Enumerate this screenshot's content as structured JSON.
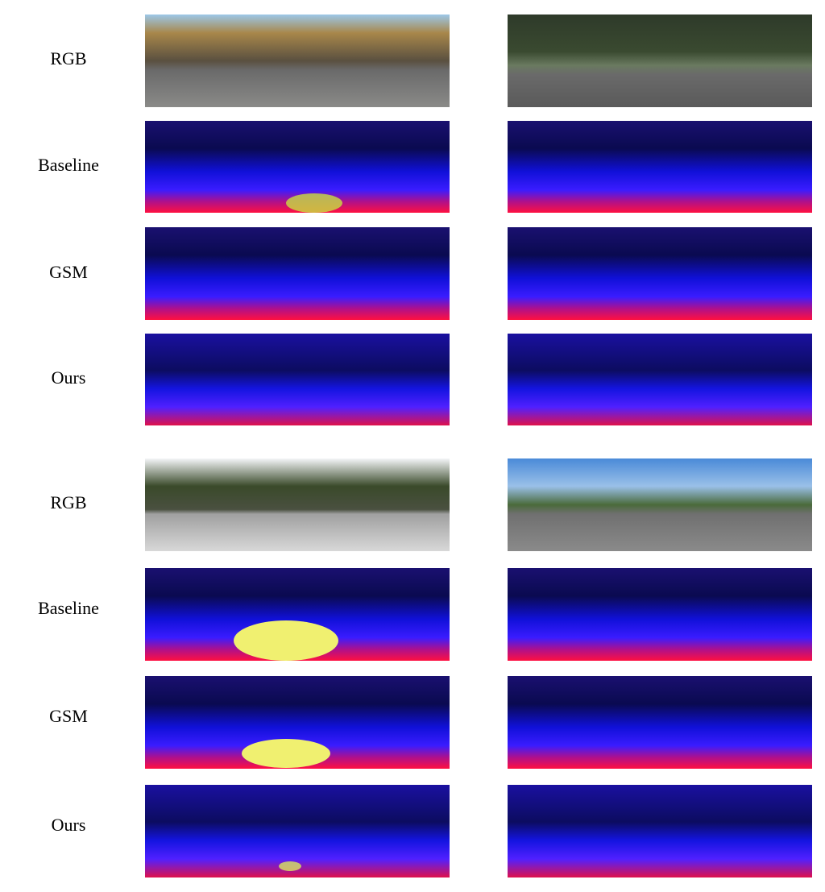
{
  "groups": [
    {
      "rows": [
        {
          "label": "RGB"
        },
        {
          "label": "Baseline"
        },
        {
          "label": "GSM"
        },
        {
          "label": "Ours"
        }
      ]
    },
    {
      "rows": [
        {
          "label": "RGB"
        },
        {
          "label": "Baseline"
        },
        {
          "label": "GSM"
        },
        {
          "label": "Ours"
        }
      ]
    }
  ]
}
